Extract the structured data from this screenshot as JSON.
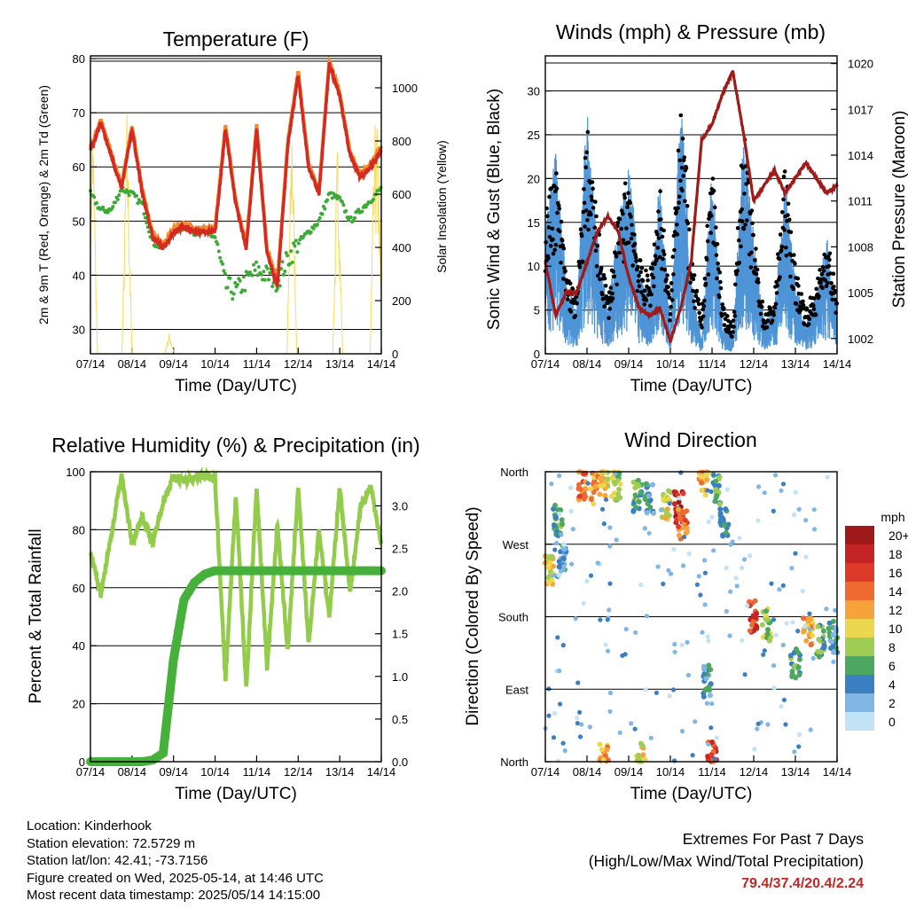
{
  "time_ticks": [
    "07/14",
    "08/14",
    "09/14",
    "10/14",
    "11/14",
    "12/14",
    "13/14",
    "14/14"
  ],
  "time_axis_label": "Time (Day/UTC)",
  "charts": {
    "temperature": {
      "title": "Temperature (F)",
      "ylabel_left": "2m & 9m T (Red, Orange) & 2m Td (Green)",
      "ylabel_right": "Solar Insolation (Yellow)",
      "left_ticks": [
        "30",
        "40",
        "50",
        "60",
        "70",
        "80"
      ],
      "right_ticks": [
        "0",
        "200",
        "400",
        "600",
        "800",
        "1000"
      ]
    },
    "winds": {
      "title": "Winds (mph) & Pressure (mb)",
      "ylabel_left": "Sonic Wind & Gust (Blue, Black)",
      "ylabel_right": "Station Pressure (Maroon)",
      "left_ticks": [
        "0",
        "5",
        "10",
        "15",
        "20",
        "25",
        "30"
      ],
      "right_ticks": [
        "1002",
        "1005",
        "1008",
        "1011",
        "1014",
        "1017",
        "1020"
      ]
    },
    "humidity": {
      "title": "Relative Humidity (%) & Precipitation (in)",
      "ylabel_left": "Percent & Total Rainfall",
      "left_ticks": [
        "0",
        "20",
        "40",
        "60",
        "80",
        "100"
      ],
      "right_ticks": [
        "0.0",
        "0.5",
        "1.0",
        "1.5",
        "2.0",
        "2.5",
        "3.0"
      ]
    },
    "direction": {
      "title": "Wind Direction",
      "ylabel_left": "Direction (Colored By Speed)",
      "left_ticks": [
        "North",
        "East",
        "South",
        "West",
        "North"
      ],
      "legend_title": "mph",
      "legend_labels": [
        "20+",
        "18",
        "16",
        "14",
        "12",
        "10",
        "8",
        "6",
        "4",
        "2",
        "0"
      ],
      "legend_colors": [
        "#9e1a1a",
        "#c42424",
        "#dd3a2a",
        "#ee6a30",
        "#f7a33c",
        "#ebd74e",
        "#9fcc52",
        "#4ca760",
        "#3a7fc2",
        "#7fb6e4",
        "#c2e2f6"
      ]
    }
  },
  "colors": {
    "temp2m": "#d42a22",
    "temp9m": "#f08c2e",
    "dewpoint": "#3daa38",
    "solar": "#f6dc5c",
    "wind": "#4e94d6",
    "gust": "#000000",
    "pressure": "#a01a1a",
    "rh": "#93cc4a",
    "precip": "#45b03a"
  },
  "chart_data": [
    {
      "type": "line",
      "title": "Temperature (F)",
      "xlabel": "Time (Day/UTC)",
      "ylabel": "2m & 9m T (Red, Orange) & 2m Td (Green)",
      "y2label": "Solar Insolation (Yellow)",
      "x": [
        0,
        0.25,
        0.5,
        0.75,
        1,
        1.25,
        1.5,
        1.75,
        2,
        2.25,
        2.5,
        2.75,
        3,
        3.25,
        3.5,
        3.75,
        4,
        4.25,
        4.5,
        4.75,
        5,
        5.25,
        5.5,
        5.75,
        6,
        6.25,
        6.5,
        6.75,
        7
      ],
      "ylim": [
        25.5,
        80.5
      ],
      "y2lim": [
        0,
        1120
      ],
      "series": [
        {
          "name": "2m T",
          "axis": "left",
          "values": [
            63,
            68,
            62,
            56,
            67,
            55,
            47,
            45,
            48,
            49,
            48,
            48,
            48,
            67,
            53,
            45,
            67,
            44,
            38,
            64,
            77,
            60,
            55,
            79,
            73,
            62,
            58,
            60,
            63
          ]
        },
        {
          "name": "2m Td",
          "axis": "left",
          "values": [
            55,
            52,
            52,
            56,
            55,
            53,
            46,
            45,
            48,
            49,
            48,
            48,
            47,
            38,
            37,
            39,
            41,
            40,
            39,
            43,
            46,
            48,
            50,
            55,
            54,
            50,
            52,
            54,
            56
          ]
        },
        {
          "name": "Solar Insolation",
          "axis": "right",
          "values": [
            0,
            1000,
            10,
            0,
            940,
            0,
            0,
            0,
            80,
            0,
            0,
            0,
            0,
            960,
            0,
            0,
            850,
            0,
            0,
            960,
            0,
            0,
            0,
            1020,
            0,
            0,
            0,
            0,
            200
          ]
        }
      ]
    },
    {
      "type": "line",
      "title": "Winds (mph) & Pressure (mb)",
      "xlabel": "Time (Day/UTC)",
      "ylabel": "Sonic Wind & Gust (Blue, Black)",
      "y2label": "Station Pressure (Maroon)",
      "x": [
        0,
        0.25,
        0.5,
        0.75,
        1,
        1.25,
        1.5,
        1.75,
        2,
        2.25,
        2.5,
        2.75,
        3,
        3.25,
        3.5,
        3.75,
        4,
        4.25,
        4.5,
        4.75,
        5,
        5.25,
        5.5,
        5.75,
        6,
        6.25,
        6.5,
        6.75,
        7
      ],
      "ylim": [
        0,
        34
      ],
      "y2lim": [
        1001,
        1020.5
      ],
      "series": [
        {
          "name": "Sonic Wind",
          "axis": "left",
          "values": [
            9,
            14,
            5,
            3,
            17,
            8,
            3,
            9,
            13,
            6,
            4,
            12,
            2,
            18,
            5,
            1,
            13,
            2,
            1,
            15,
            8,
            2,
            3,
            12,
            5,
            2,
            4,
            8,
            3
          ]
        },
        {
          "name": "Gust",
          "axis": "left",
          "values": [
            15,
            20,
            9,
            6,
            24,
            14,
            6,
            14,
            20,
            10,
            8,
            18,
            5,
            30,
            10,
            4,
            21,
            5,
            3,
            24,
            13,
            4,
            6,
            20,
            9,
            5,
            7,
            13,
            6
          ]
        },
        {
          "name": "Station Pressure",
          "axis": "right",
          "values": [
            1007,
            1003.5,
            1005,
            1005,
            1007,
            1009,
            1010,
            1009,
            1006,
            1004,
            1003.5,
            1004,
            1001.8,
            1004,
            1007,
            1015,
            1016,
            1018,
            1019.5,
            1015.5,
            1011,
            1012,
            1013,
            1011.5,
            1012.5,
            1013.5,
            1012.5,
            1011.5,
            1012
          ]
        }
      ]
    },
    {
      "type": "line",
      "title": "Relative Humidity (%) & Precipitation (in)",
      "xlabel": "Time (Day/UTC)",
      "ylabel": "Percent & Total Rainfall",
      "x": [
        0,
        0.25,
        0.5,
        0.75,
        1,
        1.25,
        1.5,
        1.75,
        2,
        2.25,
        2.5,
        2.75,
        3,
        3.25,
        3.5,
        3.75,
        4,
        4.25,
        4.5,
        4.75,
        5,
        5.25,
        5.5,
        5.75,
        6,
        6.25,
        6.5,
        6.75,
        7
      ],
      "ylim": [
        0,
        100
      ],
      "y2lim": [
        0,
        3.4
      ],
      "series": [
        {
          "name": "Relative Humidity",
          "axis": "left",
          "values": [
            72,
            58,
            78,
            99,
            75,
            85,
            75,
            90,
            98,
            97,
            98,
            99,
            97,
            28,
            92,
            25,
            95,
            32,
            82,
            38,
            95,
            40,
            80,
            50,
            95,
            58,
            88,
            95,
            75
          ]
        },
        {
          "name": "Total Rainfall",
          "axis": "right",
          "values": [
            0,
            0,
            0,
            0,
            0,
            0,
            0.02,
            0.1,
            1.2,
            1.9,
            2.1,
            2.2,
            2.24,
            2.24,
            2.24,
            2.24,
            2.24,
            2.24,
            2.24,
            2.24,
            2.24,
            2.24,
            2.24,
            2.24,
            2.24,
            2.24,
            2.24,
            2.24,
            2.24
          ]
        }
      ]
    },
    {
      "type": "scatter",
      "title": "Wind Direction",
      "xlabel": "Time (Day/UTC)",
      "ylabel": "Direction (Colored By Speed)",
      "y_categories": [
        "North",
        "East",
        "South",
        "West",
        "North"
      ],
      "ylim": [
        0,
        360
      ],
      "colorbar": {
        "label": "mph",
        "levels": [
          "0",
          "2",
          "4",
          "6",
          "8",
          "10",
          "12",
          "14",
          "16",
          "18",
          "20+"
        ]
      },
      "points": [
        {
          "x": 0.1,
          "dir": 240,
          "mph": 10
        },
        {
          "x": 0.3,
          "dir": 300,
          "mph": 6
        },
        {
          "x": 0.4,
          "dir": 250,
          "mph": 3
        },
        {
          "x": 0.9,
          "dir": 345,
          "mph": 14
        },
        {
          "x": 1.2,
          "dir": 340,
          "mph": 12
        },
        {
          "x": 1.4,
          "dir": 350,
          "mph": 10
        },
        {
          "x": 1.7,
          "dir": 345,
          "mph": 8
        },
        {
          "x": 2.2,
          "dir": 330,
          "mph": 6
        },
        {
          "x": 2.5,
          "dir": 325,
          "mph": 4
        },
        {
          "x": 2.9,
          "dir": 320,
          "mph": 10
        },
        {
          "x": 3.2,
          "dir": 315,
          "mph": 18
        },
        {
          "x": 3.3,
          "dir": 295,
          "mph": 14
        },
        {
          "x": 3.8,
          "dir": 350,
          "mph": 12
        },
        {
          "x": 4.1,
          "dir": 340,
          "mph": 6
        },
        {
          "x": 4.3,
          "dir": 300,
          "mph": 4
        },
        {
          "x": 3.9,
          "dir": 100,
          "mph": 4
        },
        {
          "x": 4.0,
          "dir": 5,
          "mph": 16
        },
        {
          "x": 5.0,
          "dir": 180,
          "mph": 16
        },
        {
          "x": 5.3,
          "dir": 170,
          "mph": 8
        },
        {
          "x": 6.0,
          "dir": 120,
          "mph": 6
        },
        {
          "x": 6.3,
          "dir": 160,
          "mph": 12
        },
        {
          "x": 6.6,
          "dir": 150,
          "mph": 6
        },
        {
          "x": 6.9,
          "dir": 155,
          "mph": 4
        },
        {
          "x": 1.4,
          "dir": 3,
          "mph": 12
        },
        {
          "x": 2.3,
          "dir": 5,
          "mph": 10
        }
      ]
    }
  ],
  "info": {
    "location": "Location: Kinderhook",
    "elevation": "Station elevation: 72.5729 m",
    "latlon": "Station lat/lon: 42.41; -73.7156",
    "created": "Figure created on Wed, 2025-05-14, at 14:46 UTC",
    "recent": "Most recent data timestamp: 2025/05/14 14:15:00"
  },
  "extremes": {
    "title": "Extremes For Past 7 Days",
    "subtitle": "(High/Low/Max Wind/Total Precipitation)",
    "values": "79.4/37.4/20.4/2.24"
  }
}
